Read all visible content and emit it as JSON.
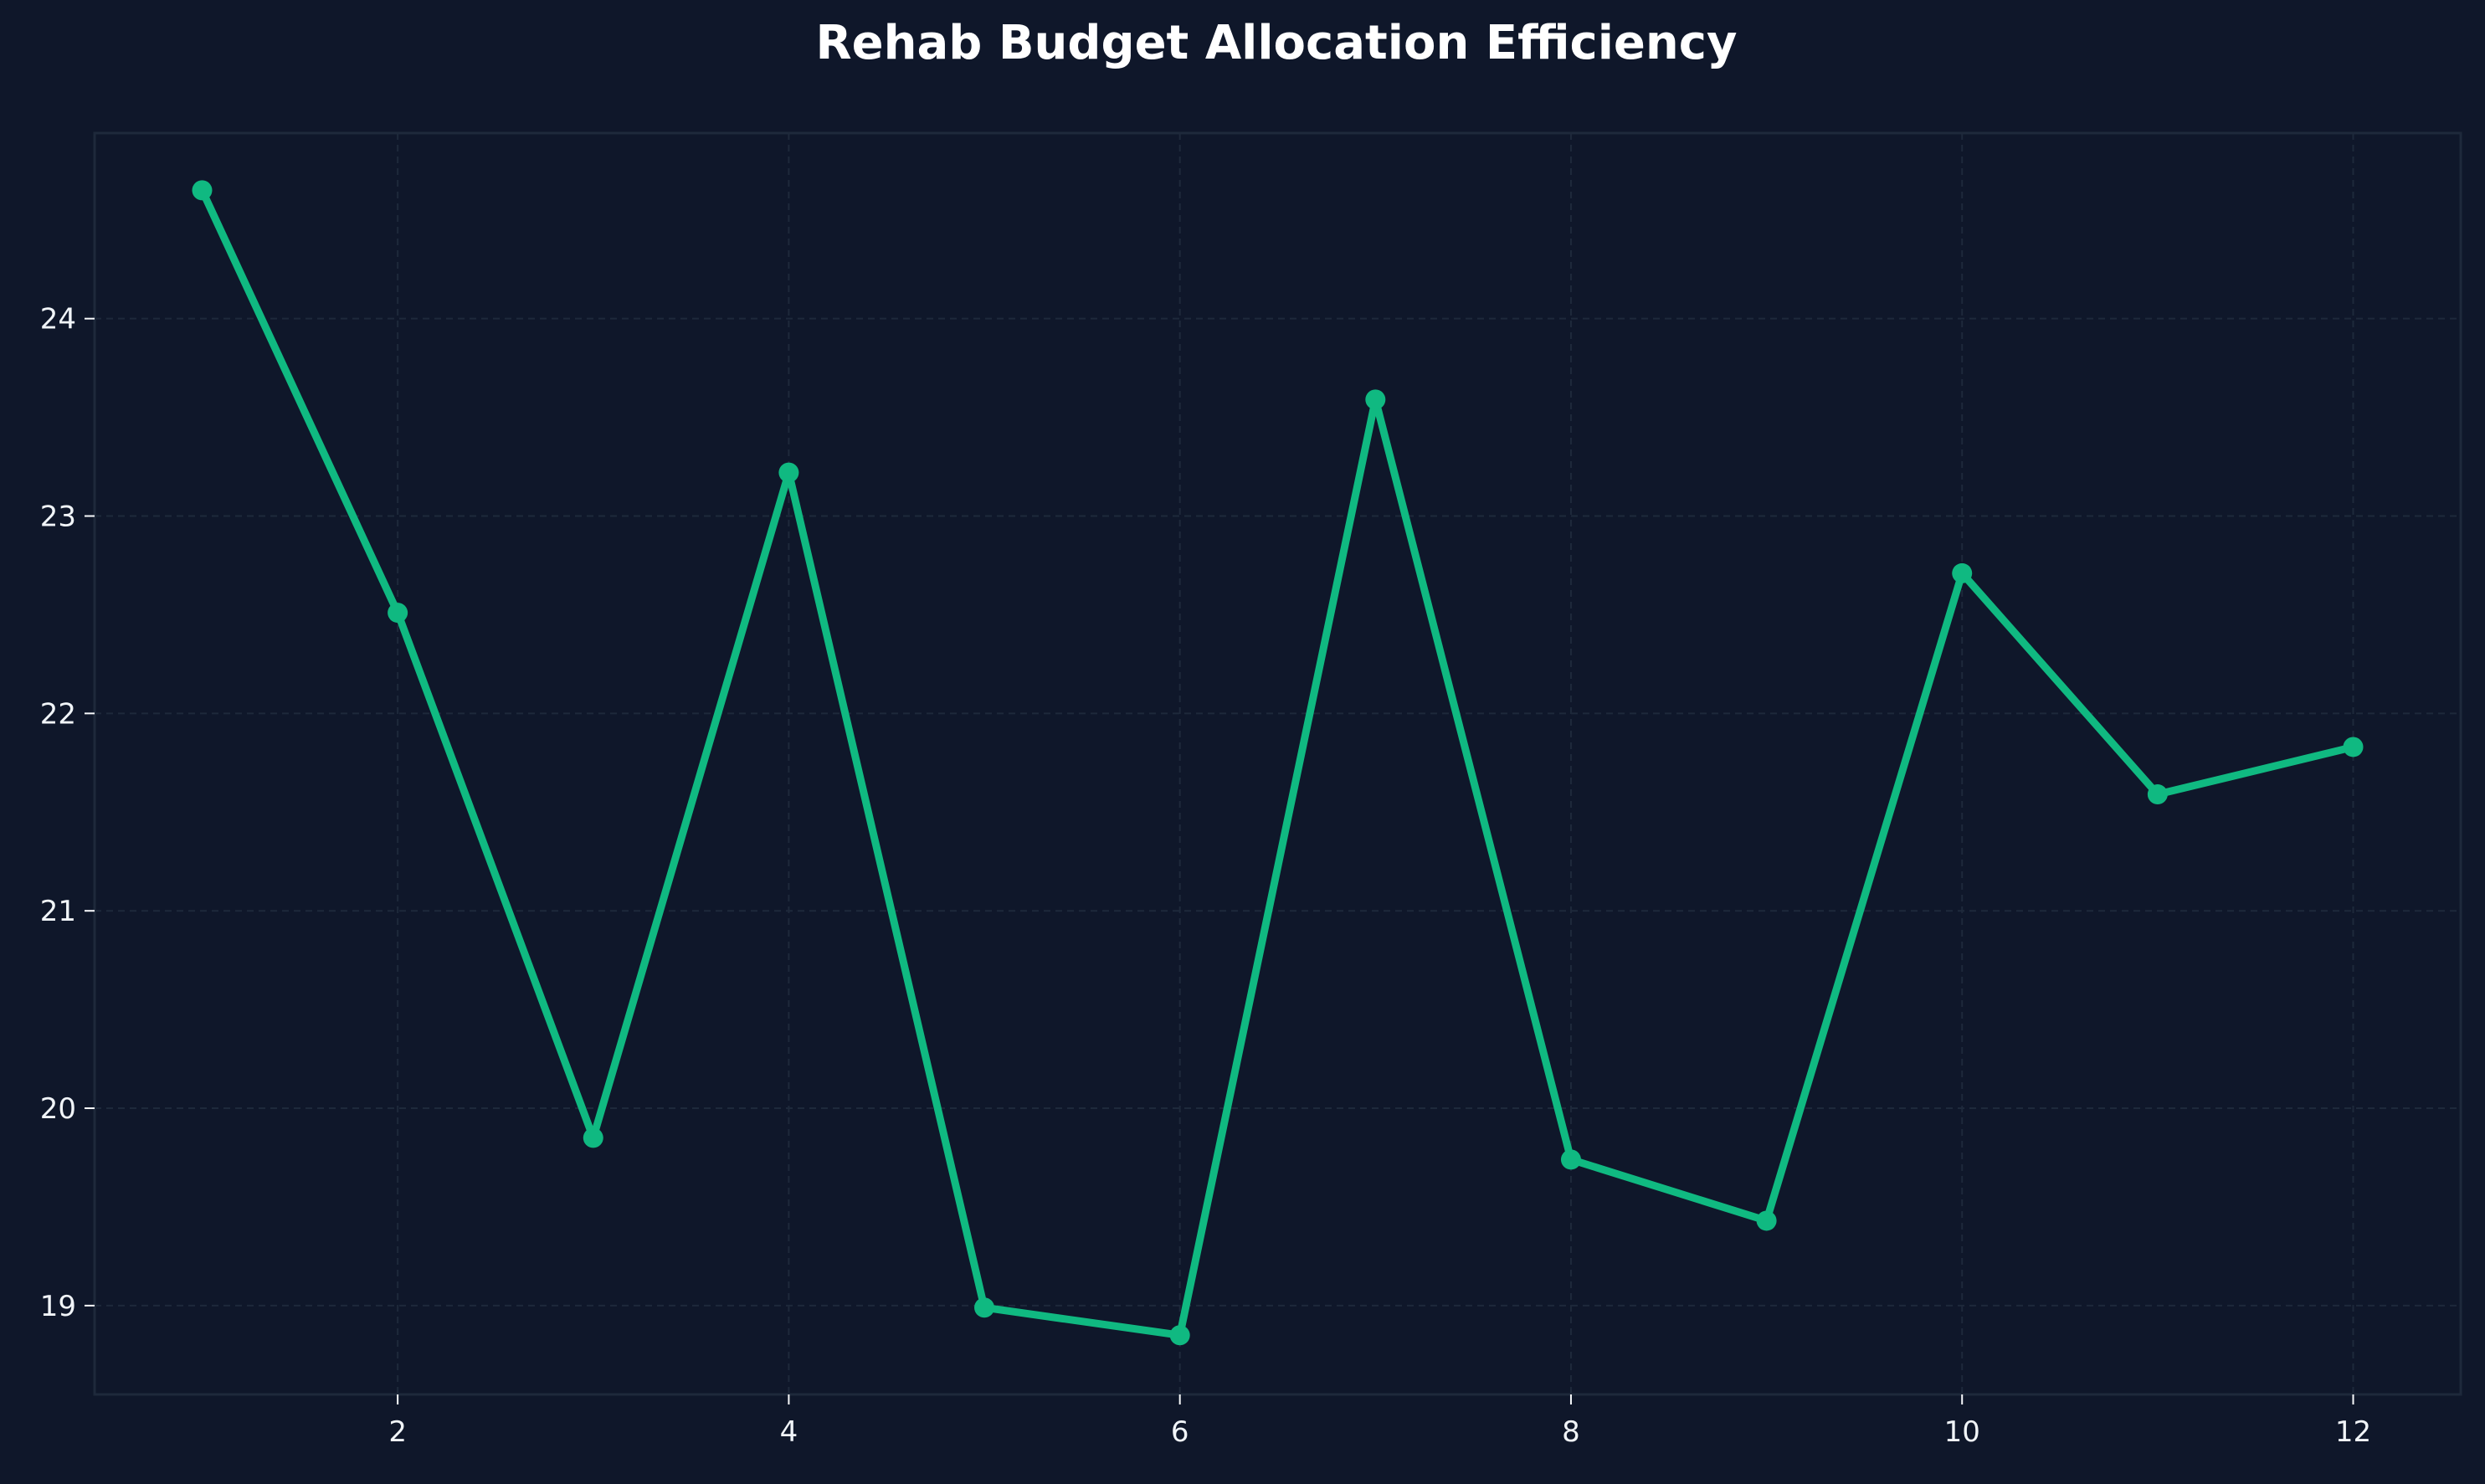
{
  "chart_data": {
    "type": "line",
    "title": "Rehab Budget Allocation Efficiency",
    "xlabel": "",
    "ylabel": "",
    "x": [
      1,
      2,
      3,
      4,
      5,
      6,
      7,
      8,
      9,
      10,
      11,
      12
    ],
    "series": [
      {
        "values": [
          24.65,
          22.51,
          19.85,
          23.22,
          18.99,
          18.85,
          23.59,
          19.74,
          19.43,
          22.71,
          21.59,
          21.83
        ]
      }
    ],
    "xlim": [
      0.45,
      12.55
    ],
    "ylim": [
      18.55,
      24.94
    ],
    "x_ticks": [
      2,
      4,
      6,
      8,
      10,
      12
    ],
    "y_ticks": [
      19,
      20,
      21,
      22,
      23,
      24
    ],
    "grid": true,
    "legend": "none",
    "colors": {
      "background": "#0f172a",
      "plot_background": "#0f172a",
      "axes_edge": "#1e293b",
      "grid": "#1e293b",
      "line": "#10b981",
      "text": "#f8fafc"
    }
  }
}
